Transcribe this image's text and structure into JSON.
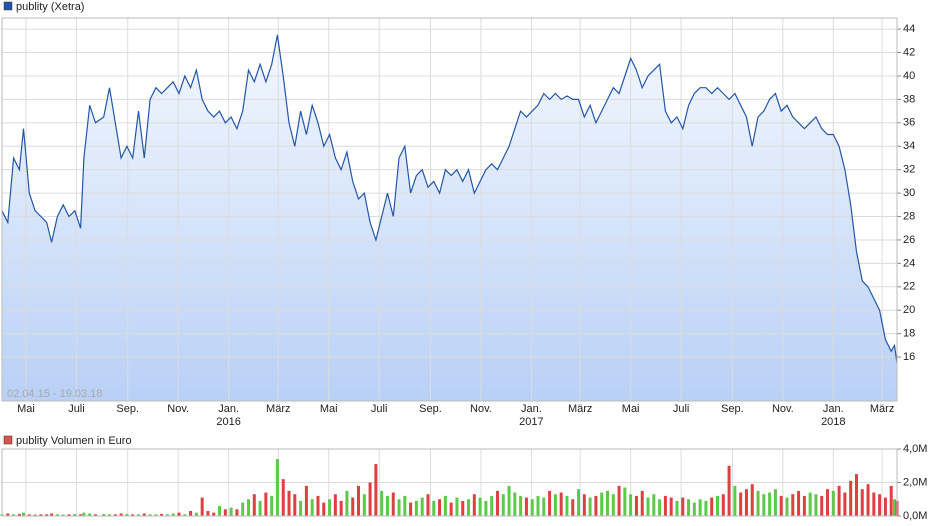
{
  "chart_data": [
    {
      "type": "line",
      "title": "publity (Xetra)",
      "date_range": "02.04.15 - 19.03.18",
      "color": "#2356a8",
      "area_top": "#f4f8fe",
      "area_bottom": "#b9d0f6",
      "grid": true,
      "xlim": [
        "2015-04-02",
        "2018-03-19"
      ],
      "xticks": [
        {
          "value": "2015-05-01",
          "label": "Mai"
        },
        {
          "value": "2015-07-01",
          "label": "Juli"
        },
        {
          "value": "2015-09-01",
          "label": "Sep."
        },
        {
          "value": "2015-11-01",
          "label": "Nov."
        },
        {
          "value": "2016-01-01",
          "label": "Jan."
        },
        {
          "value": "2016-03-01",
          "label": "März"
        },
        {
          "value": "2016-05-01",
          "label": "Mai"
        },
        {
          "value": "2016-07-01",
          "label": "Juli"
        },
        {
          "value": "2016-09-01",
          "label": "Sep."
        },
        {
          "value": "2016-11-01",
          "label": "Nov."
        },
        {
          "value": "2017-01-01",
          "label": "Jan."
        },
        {
          "value": "2017-03-01",
          "label": "März"
        },
        {
          "value": "2017-05-01",
          "label": "Mai"
        },
        {
          "value": "2017-07-01",
          "label": "Juli"
        },
        {
          "value": "2017-09-01",
          "label": "Sep."
        },
        {
          "value": "2017-11-01",
          "label": "Nov."
        },
        {
          "value": "2018-01-01",
          "label": "Jan."
        },
        {
          "value": "2018-03-01",
          "label": "März"
        }
      ],
      "year_labels": [
        {
          "value": "2016-01-01",
          "label": "2016"
        },
        {
          "value": "2017-01-01",
          "label": "2017"
        },
        {
          "value": "2018-01-01",
          "label": "2018"
        }
      ],
      "ylim": [
        12.25,
        44.95
      ],
      "yticks": [
        16,
        18,
        20,
        22,
        24,
        26,
        28,
        30,
        32,
        34,
        36,
        38,
        40,
        42,
        44
      ],
      "x": [
        "2015-04-02",
        "2015-04-09",
        "2015-04-16",
        "2015-04-23",
        "2015-04-28",
        "2015-05-05",
        "2015-05-12",
        "2015-05-19",
        "2015-05-26",
        "2015-06-01",
        "2015-06-08",
        "2015-06-15",
        "2015-06-22",
        "2015-06-29",
        "2015-07-06",
        "2015-07-10",
        "2015-07-17",
        "2015-07-24",
        "2015-08-03",
        "2015-08-10",
        "2015-08-17",
        "2015-08-24",
        "2015-08-31",
        "2015-09-07",
        "2015-09-14",
        "2015-09-21",
        "2015-09-28",
        "2015-10-05",
        "2015-10-12",
        "2015-10-19",
        "2015-10-26",
        "2015-11-02",
        "2015-11-09",
        "2015-11-16",
        "2015-11-23",
        "2015-11-30",
        "2015-12-07",
        "2015-12-14",
        "2015-12-21",
        "2015-12-28",
        "2016-01-04",
        "2016-01-11",
        "2016-01-18",
        "2016-01-25",
        "2016-02-01",
        "2016-02-08",
        "2016-02-15",
        "2016-02-22",
        "2016-02-29",
        "2016-03-07",
        "2016-03-14",
        "2016-03-21",
        "2016-03-28",
        "2016-04-04",
        "2016-04-11",
        "2016-04-18",
        "2016-04-25",
        "2016-05-02",
        "2016-05-09",
        "2016-05-16",
        "2016-05-23",
        "2016-05-30",
        "2016-06-06",
        "2016-06-13",
        "2016-06-20",
        "2016-06-27",
        "2016-07-04",
        "2016-07-11",
        "2016-07-18",
        "2016-07-25",
        "2016-08-01",
        "2016-08-08",
        "2016-08-15",
        "2016-08-22",
        "2016-08-29",
        "2016-09-05",
        "2016-09-12",
        "2016-09-19",
        "2016-09-26",
        "2016-10-03",
        "2016-10-10",
        "2016-10-17",
        "2016-10-24",
        "2016-10-31",
        "2016-11-07",
        "2016-11-14",
        "2016-11-21",
        "2016-11-28",
        "2016-12-05",
        "2016-12-12",
        "2016-12-19",
        "2016-12-26",
        "2017-01-02",
        "2017-01-09",
        "2017-01-16",
        "2017-01-23",
        "2017-01-30",
        "2017-02-06",
        "2017-02-13",
        "2017-02-20",
        "2017-02-27",
        "2017-03-06",
        "2017-03-13",
        "2017-03-20",
        "2017-03-27",
        "2017-04-03",
        "2017-04-10",
        "2017-04-17",
        "2017-04-24",
        "2017-05-01",
        "2017-05-08",
        "2017-05-15",
        "2017-05-22",
        "2017-05-29",
        "2017-06-05",
        "2017-06-12",
        "2017-06-19",
        "2017-06-26",
        "2017-07-03",
        "2017-07-10",
        "2017-07-17",
        "2017-07-24",
        "2017-07-31",
        "2017-08-07",
        "2017-08-14",
        "2017-08-21",
        "2017-08-28",
        "2017-09-04",
        "2017-09-11",
        "2017-09-18",
        "2017-09-25",
        "2017-10-02",
        "2017-10-09",
        "2017-10-16",
        "2017-10-23",
        "2017-10-30",
        "2017-11-06",
        "2017-11-13",
        "2017-11-20",
        "2017-11-27",
        "2017-12-04",
        "2017-12-11",
        "2017-12-18",
        "2017-12-25",
        "2018-01-01",
        "2018-01-08",
        "2018-01-15",
        "2018-01-22",
        "2018-01-29",
        "2018-02-05",
        "2018-02-12",
        "2018-02-19",
        "2018-02-26",
        "2018-03-05",
        "2018-03-12",
        "2018-03-16",
        "2018-03-19"
      ],
      "values": [
        28.5,
        27.5,
        33,
        32,
        35.5,
        30,
        28.5,
        28,
        27.5,
        25.8,
        28,
        29,
        28,
        28.5,
        27,
        33,
        37.5,
        36,
        36.5,
        39,
        36,
        33,
        34,
        33,
        37,
        33,
        38,
        39,
        38.5,
        39,
        39.5,
        38.5,
        40,
        39,
        40.5,
        38,
        37,
        36.5,
        37,
        36,
        36.5,
        35.5,
        37,
        40.5,
        39.5,
        41,
        39.5,
        41,
        43.5,
        40,
        36,
        34,
        37,
        35,
        37.5,
        36,
        34,
        35,
        33,
        32,
        33.5,
        31,
        29.5,
        30,
        27.5,
        26,
        28,
        30,
        28,
        33,
        34,
        30,
        31.5,
        32,
        30.5,
        31,
        30,
        32,
        31.5,
        32,
        31,
        32,
        30,
        31,
        32,
        32.5,
        32,
        33,
        34,
        35.5,
        37,
        36.5,
        37,
        37.5,
        38.5,
        38,
        38.5,
        38,
        38.3,
        38,
        38,
        36.5,
        37.5,
        36,
        37,
        38,
        39,
        38.5,
        40,
        41.5,
        40.5,
        39,
        40,
        40.5,
        41,
        37,
        36,
        36.5,
        35.5,
        37.5,
        38.5,
        39,
        39,
        38.5,
        39,
        38.5,
        38,
        38.5,
        37.5,
        36.5,
        34,
        36.5,
        37,
        38,
        38.5,
        37,
        37.5,
        36.5,
        36,
        35.5,
        36,
        36.5,
        35.5,
        35,
        35,
        34,
        32,
        29,
        25,
        22.5,
        22,
        21,
        20,
        17.5,
        16.5,
        17,
        15.5
      ]
    },
    {
      "type": "volume",
      "title": "publity Volumen in Euro",
      "legend_color": "#d9534f",
      "up_color": "#5cc94a",
      "down_color": "#dd4040",
      "grid": true,
      "xlim": [
        "2015-04-02",
        "2018-03-19"
      ],
      "xticks": [
        "2015-05-01",
        "2015-07-01",
        "2015-09-01",
        "2015-11-01",
        "2016-01-01",
        "2016-03-01",
        "2016-05-01",
        "2016-07-01",
        "2016-09-01",
        "2016-11-01",
        "2017-01-01",
        "2017-03-01",
        "2017-05-01",
        "2017-07-01",
        "2017-09-01",
        "2017-11-01",
        "2018-01-01",
        "2018-03-01"
      ],
      "ylim": [
        0,
        4
      ],
      "yticks": [
        {
          "value": 0,
          "label": "0,0M"
        },
        {
          "value": 2,
          "label": "2,0M"
        },
        {
          "value": 4,
          "label": "4,0M"
        }
      ],
      "x": [
        "2015-04-02",
        "2015-04-09",
        "2015-04-16",
        "2015-04-23",
        "2015-04-28",
        "2015-05-05",
        "2015-05-12",
        "2015-05-19",
        "2015-05-26",
        "2015-06-01",
        "2015-06-08",
        "2015-06-15",
        "2015-06-22",
        "2015-06-29",
        "2015-07-06",
        "2015-07-10",
        "2015-07-17",
        "2015-07-24",
        "2015-08-03",
        "2015-08-10",
        "2015-08-17",
        "2015-08-24",
        "2015-08-31",
        "2015-09-07",
        "2015-09-14",
        "2015-09-21",
        "2015-09-28",
        "2015-10-05",
        "2015-10-12",
        "2015-10-19",
        "2015-10-26",
        "2015-11-02",
        "2015-11-09",
        "2015-11-16",
        "2015-11-23",
        "2015-11-30",
        "2015-12-07",
        "2015-12-14",
        "2015-12-21",
        "2015-12-28",
        "2016-01-04",
        "2016-01-11",
        "2016-01-18",
        "2016-01-25",
        "2016-02-01",
        "2016-02-08",
        "2016-02-15",
        "2016-02-22",
        "2016-02-29",
        "2016-03-07",
        "2016-03-14",
        "2016-03-21",
        "2016-03-28",
        "2016-04-04",
        "2016-04-11",
        "2016-04-18",
        "2016-04-25",
        "2016-05-02",
        "2016-05-09",
        "2016-05-16",
        "2016-05-23",
        "2016-05-30",
        "2016-06-06",
        "2016-06-13",
        "2016-06-20",
        "2016-06-27",
        "2016-07-04",
        "2016-07-11",
        "2016-07-18",
        "2016-07-25",
        "2016-08-01",
        "2016-08-08",
        "2016-08-15",
        "2016-08-22",
        "2016-08-29",
        "2016-09-05",
        "2016-09-12",
        "2016-09-19",
        "2016-09-26",
        "2016-10-03",
        "2016-10-10",
        "2016-10-17",
        "2016-10-24",
        "2016-10-31",
        "2016-11-07",
        "2016-11-14",
        "2016-11-21",
        "2016-11-28",
        "2016-12-05",
        "2016-12-12",
        "2016-12-19",
        "2016-12-26",
        "2017-01-02",
        "2017-01-09",
        "2017-01-16",
        "2017-01-23",
        "2017-01-30",
        "2017-02-06",
        "2017-02-13",
        "2017-02-20",
        "2017-02-27",
        "2017-03-06",
        "2017-03-13",
        "2017-03-20",
        "2017-03-27",
        "2017-04-03",
        "2017-04-10",
        "2017-04-17",
        "2017-04-24",
        "2017-05-01",
        "2017-05-08",
        "2017-05-15",
        "2017-05-22",
        "2017-05-29",
        "2017-06-05",
        "2017-06-12",
        "2017-06-19",
        "2017-06-26",
        "2017-07-03",
        "2017-07-10",
        "2017-07-17",
        "2017-07-24",
        "2017-07-31",
        "2017-08-07",
        "2017-08-14",
        "2017-08-21",
        "2017-08-28",
        "2017-09-04",
        "2017-09-11",
        "2017-09-18",
        "2017-09-25",
        "2017-10-02",
        "2017-10-09",
        "2017-10-16",
        "2017-10-23",
        "2017-10-30",
        "2017-11-06",
        "2017-11-13",
        "2017-11-20",
        "2017-11-27",
        "2017-12-04",
        "2017-12-11",
        "2017-12-18",
        "2017-12-25",
        "2018-01-01",
        "2018-01-08",
        "2018-01-15",
        "2018-01-22",
        "2018-01-29",
        "2018-02-05",
        "2018-02-12",
        "2018-02-19",
        "2018-02-26",
        "2018-03-05",
        "2018-03-12",
        "2018-03-16",
        "2018-03-19"
      ],
      "values": [
        0.1,
        0.15,
        0.1,
        0.12,
        0.2,
        0.1,
        0.08,
        0.1,
        0.1,
        0.15,
        0.1,
        0.08,
        0.1,
        0.12,
        0.1,
        0.2,
        0.15,
        0.1,
        0.12,
        0.1,
        0.1,
        0.15,
        0.12,
        0.1,
        0.1,
        0.15,
        0.1,
        0.1,
        0.12,
        0.1,
        0.15,
        0.2,
        0.1,
        0.3,
        0.2,
        1.1,
        0.3,
        0.2,
        0.6,
        0.4,
        0.5,
        0.4,
        0.8,
        1.0,
        1.3,
        0.9,
        1.4,
        1.2,
        3.4,
        2.2,
        1.5,
        1.3,
        0.9,
        1.8,
        1.0,
        1.2,
        0.8,
        1.0,
        1.3,
        0.9,
        1.5,
        1.1,
        1.8,
        1.3,
        2.0,
        3.1,
        1.5,
        1.2,
        1.4,
        1.0,
        1.2,
        0.8,
        0.9,
        1.1,
        1.3,
        0.9,
        1.0,
        1.2,
        0.8,
        1.1,
        0.9,
        1.0,
        1.3,
        1.1,
        0.9,
        1.2,
        1.5,
        1.3,
        1.8,
        1.4,
        1.2,
        1.1,
        1.0,
        1.2,
        1.1,
        1.5,
        1.3,
        1.4,
        1.2,
        1.0,
        1.6,
        1.3,
        1.1,
        1.2,
        1.4,
        1.5,
        1.3,
        1.8,
        1.7,
        1.3,
        1.2,
        1.5,
        1.1,
        1.3,
        1.0,
        1.2,
        1.1,
        0.9,
        1.1,
        1.0,
        0.8,
        1.0,
        0.9,
        1.1,
        1.2,
        1.3,
        3.0,
        1.8,
        1.4,
        1.6,
        1.9,
        1.5,
        1.3,
        1.4,
        1.6,
        1.2,
        1.1,
        1.3,
        1.5,
        1.2,
        1.4,
        1.3,
        1.2,
        1.6,
        1.5,
        1.8,
        1.4,
        2.1,
        2.5,
        1.6,
        1.9,
        1.4,
        1.3,
        1.1,
        1.8,
        1.0,
        0.9
      ]
    }
  ]
}
